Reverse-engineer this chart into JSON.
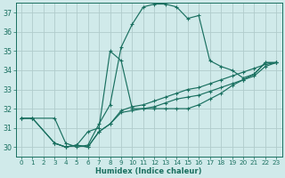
{
  "title": "",
  "xlabel": "Humidex (Indice chaleur)",
  "ylabel": "",
  "bg_color": "#d0eaea",
  "grid_color": "#b0cccc",
  "line_color": "#1a7060",
  "xlim": [
    -0.5,
    23.5
  ],
  "ylim": [
    29.5,
    37.5
  ],
  "yticks": [
    30,
    31,
    32,
    33,
    34,
    35,
    36,
    37
  ],
  "xticks": [
    0,
    1,
    2,
    3,
    4,
    5,
    6,
    7,
    8,
    9,
    10,
    11,
    12,
    13,
    14,
    15,
    16,
    17,
    18,
    19,
    20,
    21,
    22,
    23
  ],
  "lines": [
    {
      "x": [
        0,
        1,
        3,
        4,
        5,
        6,
        7,
        8,
        9,
        10,
        11,
        12,
        13,
        14,
        15,
        16,
        17,
        18,
        19,
        20,
        21,
        22,
        23
      ],
      "y": [
        31.5,
        31.5,
        31.5,
        30.2,
        30.0,
        30.1,
        31.2,
        32.2,
        35.2,
        36.4,
        37.3,
        37.45,
        37.45,
        37.3,
        36.7,
        36.85,
        34.5,
        34.2,
        34.0,
        33.6,
        33.8,
        34.4,
        34.4
      ]
    },
    {
      "x": [
        3,
        4,
        5,
        6,
        7,
        8,
        9,
        10,
        11,
        12,
        13,
        14,
        15,
        16,
        17,
        18,
        19,
        20,
        21,
        22,
        23
      ],
      "y": [
        30.2,
        30.0,
        30.1,
        30.8,
        31.0,
        35.0,
        34.5,
        32.0,
        32.0,
        32.0,
        32.0,
        32.0,
        32.0,
        32.2,
        32.5,
        32.8,
        33.2,
        33.5,
        33.8,
        34.4,
        34.4
      ]
    },
    {
      "x": [
        0,
        1,
        3,
        4,
        5,
        6,
        7,
        8,
        9,
        10,
        11,
        12,
        13,
        14,
        15,
        16,
        17,
        18,
        19,
        20,
        21,
        22,
        23
      ],
      "y": [
        31.5,
        31.5,
        30.2,
        30.0,
        30.1,
        30.0,
        30.8,
        31.2,
        31.8,
        31.9,
        32.0,
        32.1,
        32.3,
        32.5,
        32.6,
        32.7,
        32.9,
        33.1,
        33.3,
        33.5,
        33.7,
        34.2,
        34.4
      ]
    },
    {
      "x": [
        0,
        1,
        3,
        4,
        5,
        6,
        7,
        8,
        9,
        10,
        11,
        12,
        13,
        14,
        15,
        16,
        17,
        18,
        19,
        20,
        21,
        22,
        23
      ],
      "y": [
        31.5,
        31.5,
        30.2,
        30.0,
        30.1,
        30.0,
        30.8,
        31.2,
        31.9,
        32.1,
        32.2,
        32.4,
        32.6,
        32.8,
        33.0,
        33.1,
        33.3,
        33.5,
        33.7,
        33.9,
        34.1,
        34.3,
        34.4
      ]
    }
  ]
}
